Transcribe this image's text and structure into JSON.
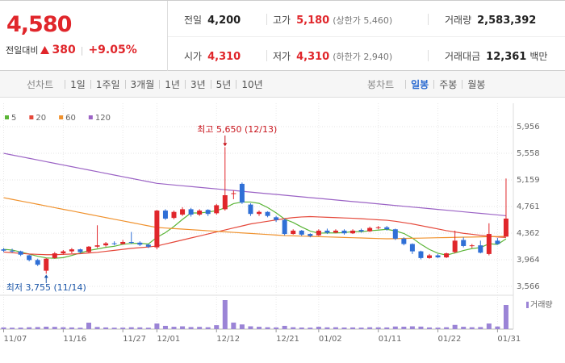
{
  "header": {
    "price": "4,580",
    "change_label": "전일대비",
    "change": "380",
    "change_rate": "+9.05%",
    "stats": [
      {
        "label": "전일",
        "value": "4,200"
      },
      {
        "label": "고가",
        "value": "5,180",
        "note": "(상한가 5,460)"
      },
      {
        "label": "거래량",
        "value": "2,583,392"
      },
      {
        "label": "시가",
        "value": "4,310"
      },
      {
        "label": "저가",
        "value": "4,310",
        "note": "(하한가 2,940)"
      },
      {
        "label": "거래대금",
        "value": "12,361",
        "unit": "백만"
      }
    ]
  },
  "toolbar": {
    "line_chart": "선차트",
    "periods": [
      "1일",
      "1주일",
      "3개월",
      "1년",
      "3년",
      "5년",
      "10년"
    ],
    "candle_chart": "봉차트",
    "candle_periods": [
      "일봉",
      "주봉",
      "월봉"
    ]
  },
  "chart_data": {
    "type": "candlestick",
    "categories": [
      "11/07",
      null,
      null,
      null,
      null,
      null,
      null,
      "11/16",
      null,
      null,
      null,
      null,
      null,
      null,
      "11/27",
      null,
      null,
      null,
      "12/01",
      null,
      null,
      null,
      null,
      null,
      null,
      "12/12",
      null,
      null,
      null,
      null,
      null,
      null,
      "12/21",
      null,
      null,
      null,
      null,
      "01/02",
      null,
      null,
      null,
      null,
      null,
      null,
      "01/11",
      null,
      null,
      null,
      null,
      null,
      null,
      "01/22",
      null,
      null,
      null,
      null,
      null,
      null,
      "01/31",
      null
    ],
    "open": [
      4120,
      4100,
      4090,
      4030,
      3960,
      3800,
      3990,
      4060,
      4090,
      4120,
      4080,
      4160,
      4180,
      4210,
      4200,
      4230,
      4220,
      4190,
      4150,
      4700,
      4590,
      4640,
      4720,
      4640,
      4710,
      4660,
      4720,
      4950,
      5100,
      4790,
      4650,
      4680,
      4600,
      4560,
      4350,
      4400,
      4350,
      4330,
      4400,
      4370,
      4400,
      4360,
      4410,
      4390,
      4440,
      4450,
      4420,
      4280,
      4200,
      4090,
      3990,
      4030,
      4000,
      4080,
      4260,
      4170,
      4180,
      4050,
      4250,
      4310
    ],
    "high": [
      4140,
      4130,
      4100,
      4040,
      3980,
      3990,
      4080,
      4110,
      4140,
      4130,
      4170,
      4480,
      4230,
      4240,
      4260,
      4380,
      4240,
      4200,
      4710,
      4720,
      4700,
      4750,
      4740,
      4720,
      4720,
      4800,
      5650,
      5000,
      5120,
      4810,
      4700,
      4690,
      4620,
      4580,
      4420,
      4410,
      4360,
      4420,
      4430,
      4420,
      4420,
      4420,
      4430,
      4460,
      4470,
      4470,
      4430,
      4300,
      4210,
      4100,
      4050,
      4050,
      4070,
      4400,
      4300,
      4200,
      4250,
      4510,
      4290,
      5180
    ],
    "low": [
      4080,
      4070,
      4020,
      3940,
      3870,
      3755,
      3980,
      4040,
      4060,
      4060,
      4070,
      4140,
      4160,
      4180,
      4190,
      4200,
      4170,
      4140,
      4120,
      4560,
      4570,
      4620,
      4610,
      4620,
      4620,
      4640,
      4700,
      4870,
      4800,
      4620,
      4620,
      4600,
      4530,
      4330,
      4340,
      4320,
      4300,
      4320,
      4350,
      4360,
      4340,
      4350,
      4370,
      4380,
      4420,
      4400,
      4260,
      4180,
      4050,
      3970,
      3980,
      3990,
      3990,
      4060,
      4150,
      4140,
      4060,
      4030,
      4190,
      4310
    ],
    "close": [
      4100,
      4090,
      4040,
      3960,
      3890,
      3980,
      4060,
      4090,
      4120,
      4080,
      4160,
      4180,
      4210,
      4200,
      4230,
      4220,
      4190,
      4160,
      4700,
      4580,
      4680,
      4720,
      4640,
      4700,
      4650,
      4780,
      4930,
      4960,
      4820,
      4650,
      4680,
      4620,
      4560,
      4350,
      4400,
      4340,
      4320,
      4400,
      4370,
      4400,
      4360,
      4400,
      4390,
      4440,
      4450,
      4420,
      4280,
      4200,
      4090,
      3990,
      4030,
      4000,
      4060,
      4250,
      4170,
      4180,
      4070,
      4350,
      4200,
      4580
    ],
    "up_color": "#e0262b",
    "down_color": "#2f6fd6",
    "series": [
      {
        "name": "5",
        "color": "#5bb537",
        "values": [
          4120,
          4110,
          4080,
          4050,
          4016,
          3992,
          3986,
          3996,
          4028,
          4066,
          4102,
          4126,
          4150,
          4166,
          4196,
          4208,
          4210,
          4200,
          4300,
          4370,
          4462,
          4568,
          4664,
          4664,
          4678,
          4698,
          4740,
          4804,
          4828,
          4828,
          4808,
          4746,
          4666,
          4572,
          4522,
          4454,
          4394,
          4362,
          4366,
          4366,
          4370,
          4386,
          4384,
          4398,
          4408,
          4420,
          4396,
          4358,
          4288,
          4196,
          4118,
          4062,
          4034,
          4066,
          4102,
          4132,
          4146,
          4204,
          4194,
          4276
        ]
      },
      {
        "name": "20",
        "color": "#e5483a",
        "values": [
          4080,
          4070,
          4060,
          4050,
          4045,
          4040,
          4040,
          4045,
          4050,
          4055,
          4065,
          4075,
          4090,
          4105,
          4120,
          4135,
          4145,
          4155,
          4170,
          4200,
          4230,
          4260,
          4290,
          4320,
          4350,
          4380,
          4410,
          4440,
          4470,
          4500,
          4520,
          4540,
          4560,
          4580,
          4595,
          4605,
          4610,
          4605,
          4600,
          4595,
          4590,
          4585,
          4578,
          4570,
          4562,
          4555,
          4540,
          4520,
          4500,
          4475,
          4450,
          4425,
          4400,
          4380,
          4360,
          4345,
          4330,
          4318,
          4305,
          4298
        ]
      },
      {
        "name": "60",
        "color": "#f0922e",
        "values": [
          4893,
          4868,
          4843,
          4819,
          4794,
          4769,
          4744,
          4719,
          4695,
          4670,
          4645,
          4620,
          4595,
          4570,
          4546,
          4521,
          4496,
          4471,
          4447,
          4439,
          4431,
          4423,
          4415,
          4406,
          4398,
          4390,
          4382,
          4374,
          4366,
          4358,
          4350,
          4342,
          4334,
          4326,
          4322,
          4318,
          4314,
          4310,
          4306,
          4302,
          4298,
          4294,
          4290,
          4286,
          4282,
          4278,
          4280,
          4283,
          4286,
          4288,
          4291,
          4294,
          4296,
          4299,
          4302,
          4304,
          4307,
          4310,
          4312,
          4315
        ]
      },
      {
        "name": "120",
        "color": "#9b63c5",
        "values": [
          5557,
          5532,
          5507,
          5482,
          5457,
          5432,
          5407,
          5382,
          5357,
          5332,
          5307,
          5282,
          5257,
          5232,
          5207,
          5182,
          5157,
          5132,
          5107,
          5095,
          5083,
          5071,
          5060,
          5048,
          5036,
          5024,
          5012,
          5001,
          4989,
          4977,
          4965,
          4953,
          4942,
          4930,
          4918,
          4906,
          4894,
          4883,
          4871,
          4859,
          4847,
          4835,
          4824,
          4812,
          4800,
          4788,
          4776,
          4765,
          4753,
          4741,
          4729,
          4717,
          4706,
          4694,
          4682,
          4670,
          4658,
          4647,
          4635,
          4623
        ]
      }
    ],
    "volume": {
      "name": "거래량",
      "color": "#9b84d6",
      "values": [
        180000,
        150000,
        160000,
        200000,
        220000,
        260000,
        240000,
        200000,
        180000,
        150000,
        690000,
        230000,
        180000,
        150000,
        160000,
        200000,
        190000,
        150000,
        600000,
        350000,
        250000,
        300000,
        220000,
        240000,
        200000,
        420000,
        3100000,
        700000,
        500000,
        300000,
        250000,
        200000,
        180000,
        350000,
        200000,
        170000,
        160000,
        250000,
        190000,
        200000,
        170000,
        180000,
        160000,
        200000,
        190000,
        180000,
        280000,
        260000,
        300000,
        270000,
        180000,
        160000,
        200000,
        450000,
        250000,
        200000,
        220000,
        600000,
        280000,
        2583392
      ]
    },
    "ylim": [
      3566,
      5956
    ],
    "yticks": [
      {
        "value": 3566,
        "label": "3,566"
      },
      {
        "value": 3964,
        "label": "3,964"
      },
      {
        "value": 4362,
        "label": "4,362"
      },
      {
        "value": 4761,
        "label": "4,761"
      },
      {
        "value": 5159,
        "label": "5,159"
      },
      {
        "value": 5558,
        "label": "5,558"
      },
      {
        "value": 5956,
        "label": "5,956"
      }
    ],
    "grid": true,
    "max_label": "최고 5,650 (12/13)",
    "min_label": "최저 3,755 (11/14)"
  }
}
